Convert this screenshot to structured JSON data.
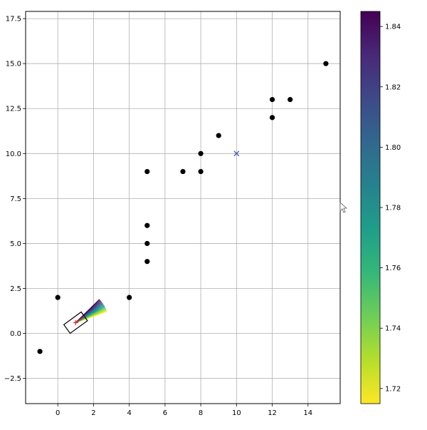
{
  "chart_data": [
    {
      "type": "scatter",
      "grid": true,
      "xlim": [
        -1.8,
        15.8
      ],
      "ylim": [
        -3.9,
        17.9
      ],
      "x_ticks": [
        0,
        2,
        4,
        6,
        8,
        10,
        12,
        14
      ],
      "y_ticks": [
        -2.5,
        0.0,
        2.5,
        5.0,
        7.5,
        10.0,
        12.5,
        15.0,
        17.5
      ],
      "x_tick_labels": [
        "0",
        "2",
        "4",
        "6",
        "8",
        "10",
        "12",
        "14"
      ],
      "y_tick_labels": [
        "−2.5",
        "0.0",
        "2.5",
        "5.0",
        "7.5",
        "10.0",
        "12.5",
        "15.0",
        "17.5"
      ],
      "obstacles": {
        "color": "#000000",
        "points": [
          {
            "x": -1,
            "y": -1
          },
          {
            "x": 0,
            "y": 2
          },
          {
            "x": 4,
            "y": 2
          },
          {
            "x": 5,
            "y": 4
          },
          {
            "x": 5,
            "y": 5
          },
          {
            "x": 5,
            "y": 6
          },
          {
            "x": 5,
            "y": 9
          },
          {
            "x": 7,
            "y": 9
          },
          {
            "x": 8,
            "y": 9
          },
          {
            "x": 8,
            "y": 10
          },
          {
            "x": 9,
            "y": 11
          },
          {
            "x": 12,
            "y": 12
          },
          {
            "x": 12,
            "y": 13
          },
          {
            "x": 13,
            "y": 13
          },
          {
            "x": 15,
            "y": 15
          }
        ]
      },
      "goal": {
        "x": 10,
        "y": 10,
        "marker": "x",
        "color": "#3b4cc0"
      },
      "robot": {
        "x": 1.0,
        "y": 0.6,
        "heading_deg": 36,
        "length": 1.2,
        "width": 0.6,
        "body_color": "#000000",
        "marker_color": "#d62728"
      },
      "trajectories": {
        "count": 12,
        "length": 1.2,
        "start_angle_deg": 20,
        "end_angle_deg": 44,
        "colors": [
          "#fde725",
          "#c2df23",
          "#86d549",
          "#52c569",
          "#2ab07f",
          "#1e9b8a",
          "#25858e",
          "#2d708e",
          "#38588c",
          "#433e85",
          "#482173",
          "#440154"
        ]
      },
      "colorbar": {
        "min": 1.715,
        "max": 1.845,
        "ticks": [
          1.72,
          1.74,
          1.76,
          1.78,
          1.8,
          1.82,
          1.84
        ],
        "tick_labels": [
          "1.72",
          "1.74",
          "1.76",
          "1.78",
          "1.80",
          "1.82",
          "1.84"
        ],
        "colormap": "viridis",
        "stops": [
          "#fde725",
          "#b5de2b",
          "#6ece58",
          "#35b779",
          "#1f9e89",
          "#26828e",
          "#31688e",
          "#3e4989",
          "#482878",
          "#440154"
        ]
      }
    }
  ],
  "cursor_icon": "mouse-pointer-icon"
}
